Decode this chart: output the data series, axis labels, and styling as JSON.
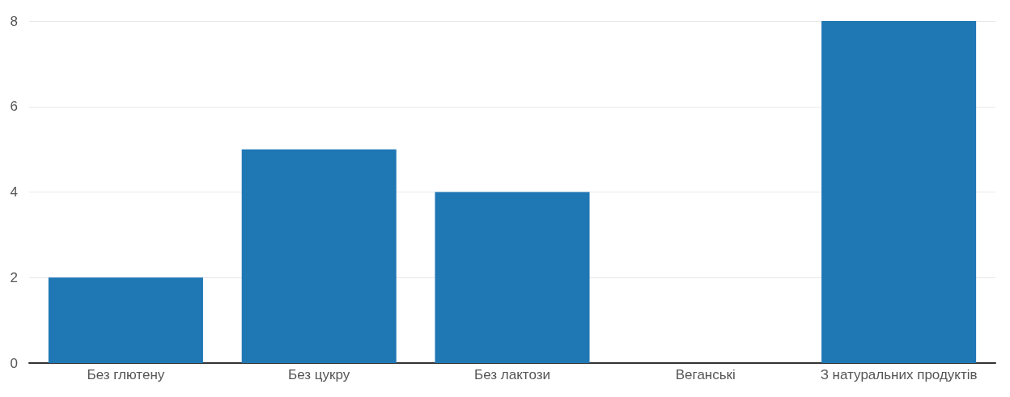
{
  "chart_data": {
    "type": "bar",
    "categories": [
      "Без глютену",
      "Без цукру",
      "Без лактози",
      "Веганські",
      "З натуральних продуктів"
    ],
    "values": [
      2,
      5,
      4,
      0,
      8
    ],
    "color": "#1f77b4",
    "ylim": [
      0,
      8
    ],
    "yticks": [
      0,
      2,
      4,
      6,
      8
    ],
    "grid": "y"
  }
}
